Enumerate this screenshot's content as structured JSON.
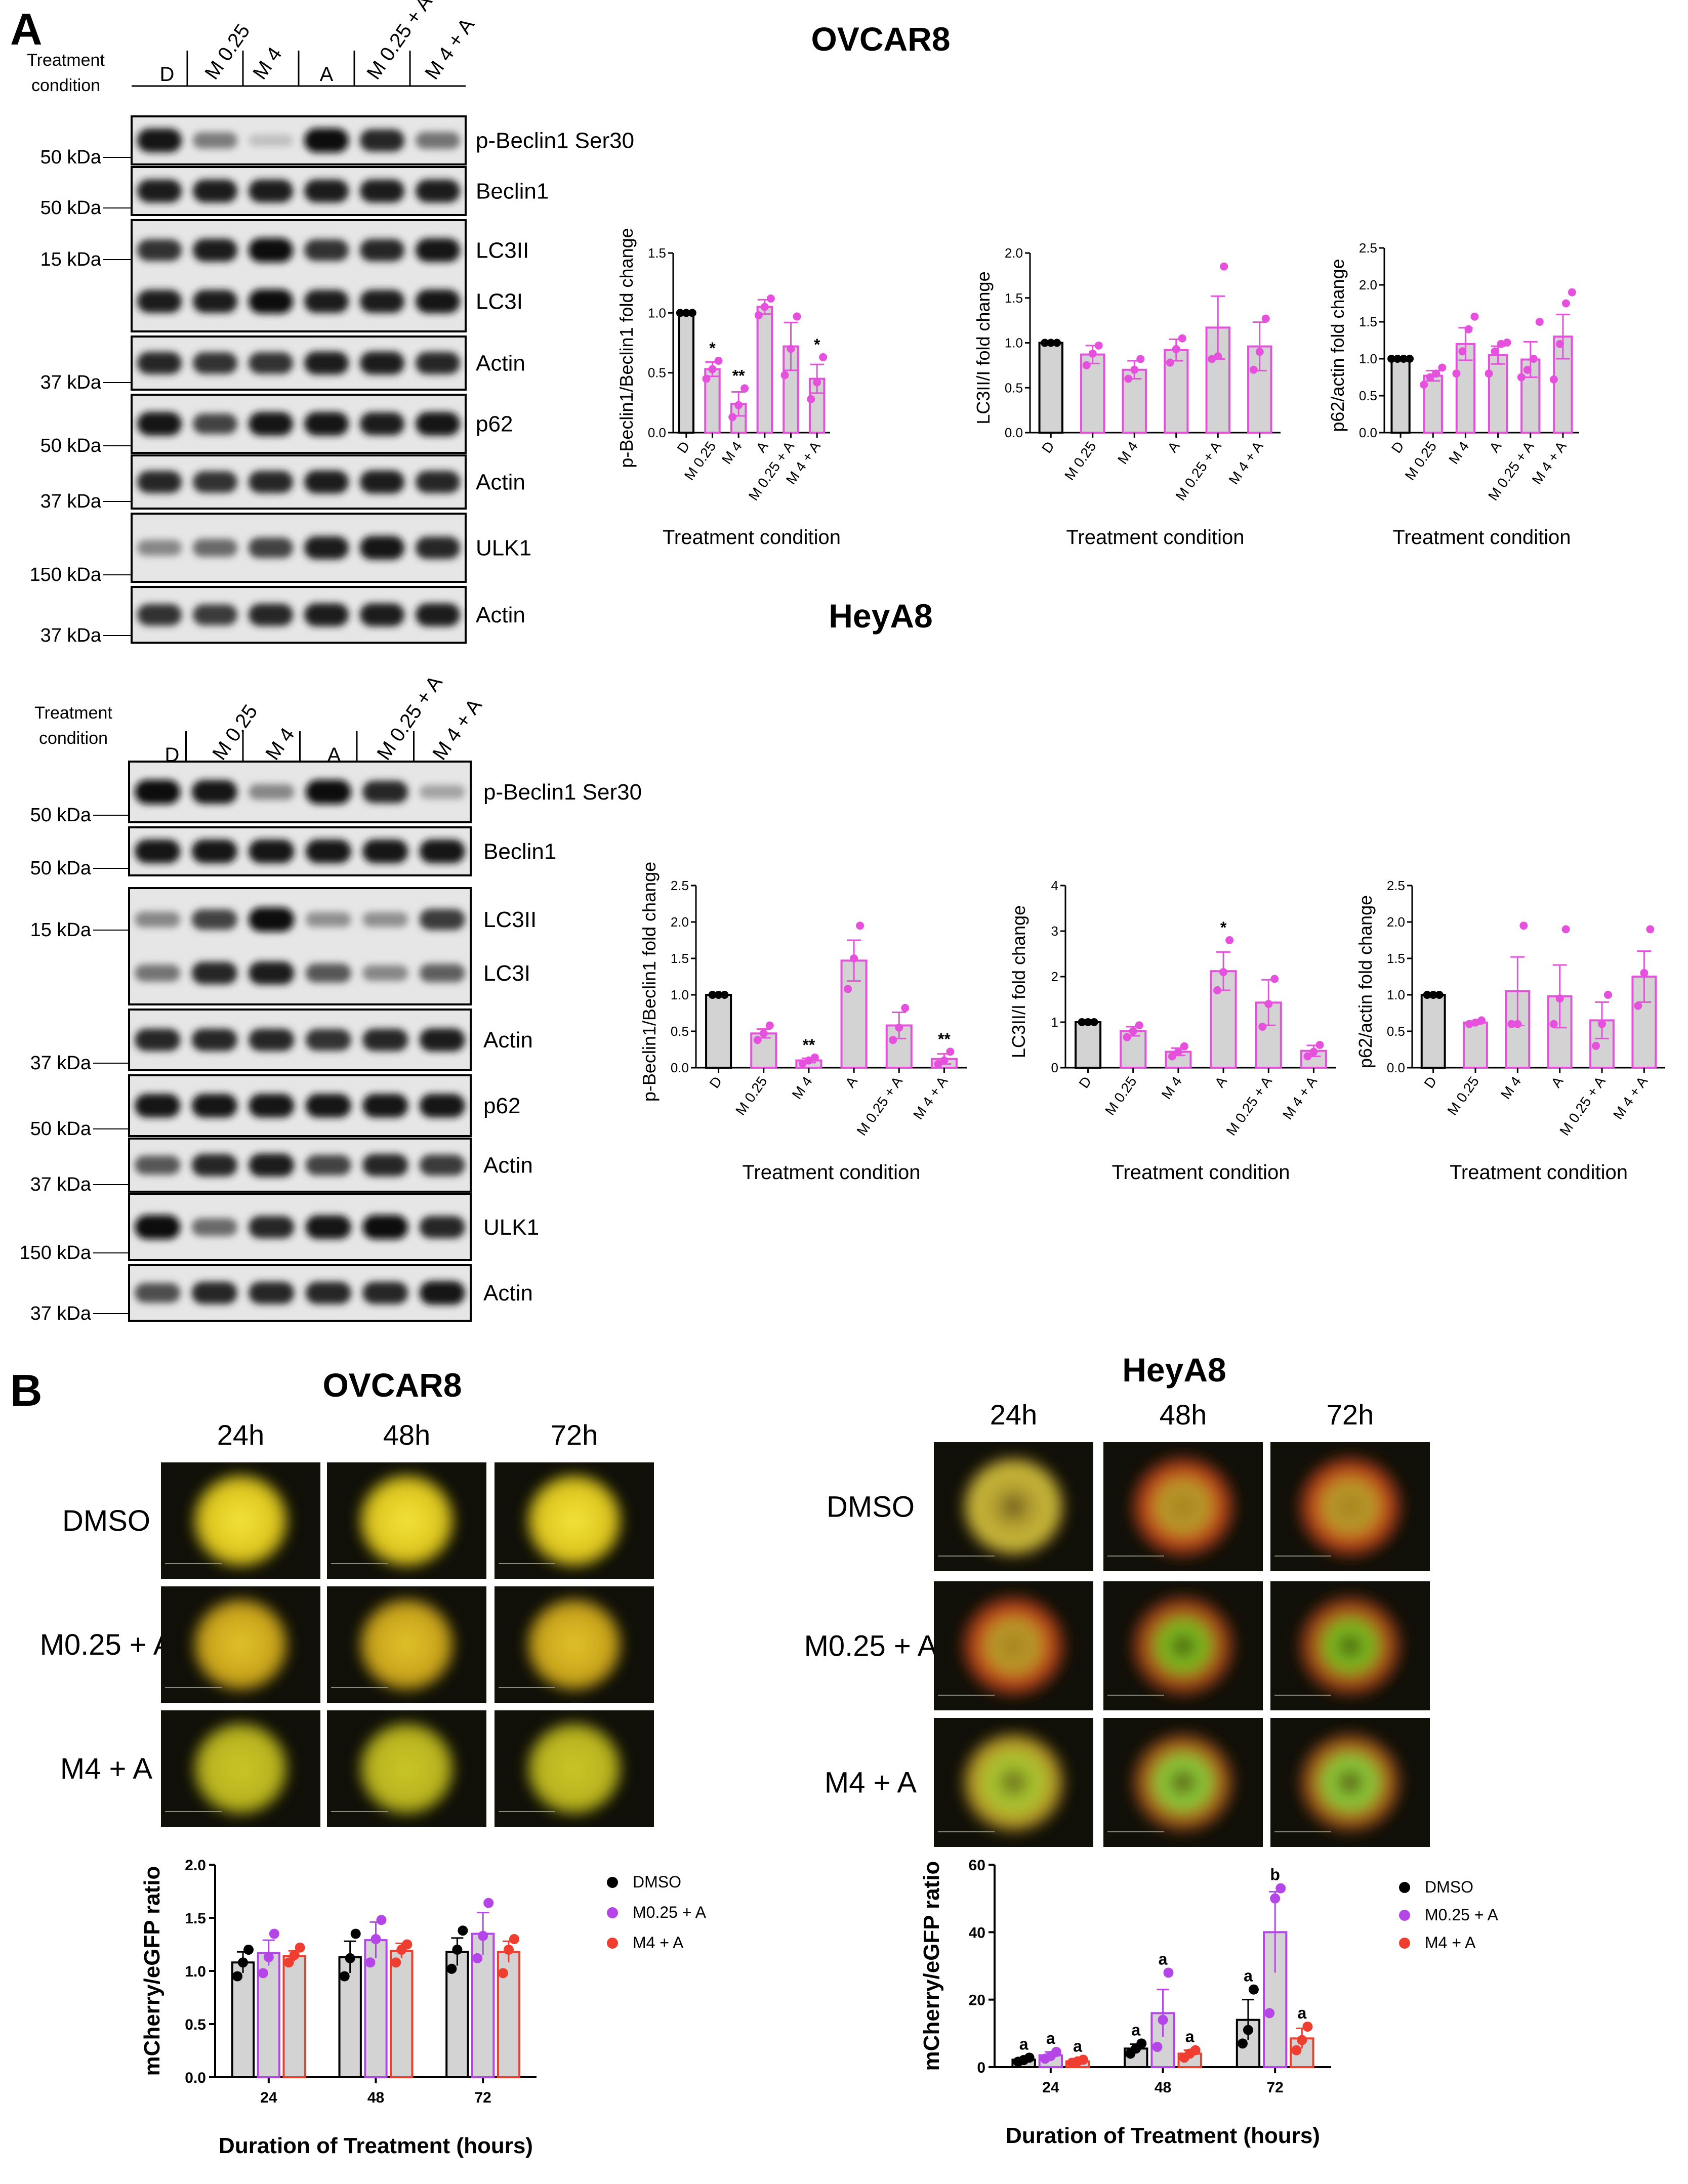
{
  "panels": {
    "a": "A",
    "b": "B"
  },
  "western": {
    "treatment_condition_label": "Treatment condition",
    "blocks": [
      {
        "title": "OVCAR8",
        "lanes": [
          "D",
          "M 0.25",
          "M 4",
          "A",
          "M 0.25 + A",
          "M 4 + A"
        ],
        "rows": [
          {
            "protein": "p-Beclin1 Ser30",
            "kda": "50 kDa",
            "int": [
              0.95,
              0.4,
              0.05,
              1,
              0.85,
              0.45
            ]
          },
          {
            "protein": "Beclin1",
            "kda": "50 kDa",
            "int": [
              0.9,
              0.9,
              0.9,
              0.9,
              0.9,
              0.9
            ]
          },
          {
            "protein": "LC3II",
            "protein2": "LC3I",
            "kda": "15 kDa",
            "int": [
              0.8,
              0.9,
              1,
              0.8,
              0.85,
              0.95
            ],
            "int2": [
              0.9,
              0.9,
              1,
              0.9,
              0.9,
              0.95
            ]
          },
          {
            "protein": "Actin",
            "kda": "37 kDa",
            "int": [
              0.85,
              0.8,
              0.8,
              0.9,
              0.9,
              0.85
            ]
          },
          {
            "protein": "p62",
            "kda": "50 kDa",
            "int": [
              0.95,
              0.7,
              0.95,
              0.95,
              0.9,
              0.95
            ]
          },
          {
            "protein": "Actin",
            "kda": "37 kDa",
            "int": [
              0.85,
              0.8,
              0.85,
              0.9,
              0.9,
              0.85
            ]
          },
          {
            "protein": "ULK1",
            "kda": "150 kDa",
            "int": [
              0.35,
              0.5,
              0.7,
              0.9,
              0.95,
              0.85
            ]
          },
          {
            "protein": "Actin",
            "kda": "37 kDa",
            "int": [
              0.8,
              0.75,
              0.85,
              0.9,
              0.9,
              0.9
            ]
          }
        ]
      },
      {
        "title": "HeyA8",
        "lanes": [
          "D",
          "M 0.25",
          "M 4",
          "A",
          "M 0.25 + A",
          "M 4 + A"
        ],
        "rows": [
          {
            "protein": "p-Beclin1 Ser30",
            "kda": "50 kDa",
            "int": [
              1,
              0.95,
              0.35,
              1,
              0.85,
              0.2
            ]
          },
          {
            "protein": "Beclin1",
            "kda": "50 kDa",
            "int": [
              0.95,
              0.95,
              0.95,
              0.95,
              0.95,
              0.95
            ]
          },
          {
            "protein": "LC3II",
            "protein2": "LC3I",
            "kda": "15 kDa",
            "int": [
              0.35,
              0.7,
              1,
              0.3,
              0.3,
              0.75
            ],
            "int2": [
              0.45,
              0.85,
              0.9,
              0.6,
              0.35,
              0.55
            ]
          },
          {
            "protein": "Actin",
            "kda": "37 kDa",
            "int": [
              0.85,
              0.85,
              0.85,
              0.8,
              0.85,
              0.9
            ]
          },
          {
            "protein": "p62",
            "kda": "50 kDa",
            "int": [
              0.95,
              0.95,
              0.95,
              0.95,
              0.95,
              0.95
            ]
          },
          {
            "protein": "Actin",
            "kda": "37 kDa",
            "int": [
              0.6,
              0.85,
              0.9,
              0.7,
              0.85,
              0.75
            ]
          },
          {
            "protein": "ULK1",
            "kda": "150 kDa",
            "int": [
              1,
              0.5,
              0.85,
              0.95,
              1,
              0.85
            ]
          },
          {
            "protein": "Actin",
            "kda": "37 kDa",
            "int": [
              0.65,
              0.85,
              0.85,
              0.85,
              0.85,
              0.95
            ]
          }
        ]
      }
    ]
  },
  "microscopy": {
    "groups": [
      {
        "title": "OVCAR8",
        "times": [
          "24h",
          "48h",
          "72h"
        ],
        "conditions": [
          "DMSO",
          "M0.25 + A",
          "M4 + A"
        ]
      },
      {
        "title": "HeyA8",
        "times": [
          "24h",
          "48h",
          "72h"
        ],
        "conditions": [
          "DMSO",
          "M0.25 + A",
          "M4 + A"
        ]
      }
    ]
  },
  "colors": {
    "pink": "#e550dc",
    "gray": "#d3d3d3",
    "black": "#000000",
    "purple": "#b445e6",
    "red": "#ef3e2f"
  },
  "chart_data": [
    {
      "type": "bar",
      "group": "OVCAR8",
      "title": "",
      "xlabel": "Treatment condition",
      "ylabel": "p-Beclin1/Beclin1 fold change",
      "categories": [
        "D",
        "M 0.25",
        "M 4",
        "A",
        "M 0.25 + A",
        "M 4 + A"
      ],
      "values": [
        1.0,
        0.53,
        0.24,
        1.05,
        0.72,
        0.45
      ],
      "errors": [
        0,
        0.06,
        0.1,
        0.06,
        0.2,
        0.12
      ],
      "points": [
        [
          1,
          1,
          1
        ],
        [
          0.45,
          0.53,
          0.6
        ],
        [
          0.13,
          0.23,
          0.37
        ],
        [
          0.98,
          1.05,
          1.12
        ],
        [
          0.48,
          0.7,
          0.97
        ],
        [
          0.28,
          0.42,
          0.63
        ]
      ],
      "sig": [
        "",
        "*",
        "**",
        "",
        "",
        "*"
      ],
      "ylim": [
        0,
        1.5
      ],
      "yticks": [
        "0.0",
        "0.5",
        "1.0",
        "1.5"
      ]
    },
    {
      "type": "bar",
      "group": "OVCAR8",
      "title": "",
      "xlabel": "Treatment condition",
      "ylabel": "LC3II/I fold change",
      "categories": [
        "D",
        "M 0.25",
        "M 4",
        "A",
        "M 0.25 + A",
        "M 4 + A"
      ],
      "values": [
        1.0,
        0.87,
        0.7,
        0.92,
        1.17,
        0.96
      ],
      "errors": [
        0,
        0.1,
        0.1,
        0.12,
        0.35,
        0.27
      ],
      "points": [
        [
          1,
          1,
          1
        ],
        [
          0.75,
          0.88,
          0.97
        ],
        [
          0.6,
          0.7,
          0.82
        ],
        [
          0.78,
          0.93,
          1.05
        ],
        [
          0.82,
          0.85,
          1.85
        ],
        [
          0.7,
          0.9,
          1.27
        ]
      ],
      "sig": [
        "",
        "",
        "",
        "",
        "",
        ""
      ],
      "ylim": [
        0,
        2.0
      ],
      "yticks": [
        "0.0",
        "0.5",
        "1.0",
        "1.5",
        "2.0"
      ]
    },
    {
      "type": "bar",
      "group": "OVCAR8",
      "title": "",
      "xlabel": "Treatment condition",
      "ylabel": "p62/actin fold change",
      "categories": [
        "D",
        "M 0.25",
        "M 4",
        "A",
        "M 0.25 + A",
        "M 4 + A"
      ],
      "values": [
        1.0,
        0.77,
        1.2,
        1.05,
        0.99,
        1.3
      ],
      "errors": [
        0,
        0.07,
        0.22,
        0.12,
        0.24,
        0.3
      ],
      "points": [
        [
          1,
          1,
          1,
          1
        ],
        [
          0.65,
          0.75,
          0.8,
          0.88
        ],
        [
          0.8,
          1.1,
          1.4,
          1.57
        ],
        [
          0.8,
          1.1,
          1.2,
          1.22
        ],
        [
          0.75,
          0.85,
          1.0,
          1.5
        ],
        [
          0.72,
          1.2,
          1.75,
          1.9
        ]
      ],
      "sig": [
        "",
        "",
        "",
        "",
        "",
        ""
      ],
      "ylim": [
        0,
        2.5
      ],
      "yticks": [
        "0.0",
        "0.5",
        "1.0",
        "1.5",
        "2.0",
        "2.5"
      ]
    },
    {
      "type": "bar",
      "group": "HeyA8",
      "title": "",
      "xlabel": "Treatment condition",
      "ylabel": "p-Beclin1/Beclin1 fold change",
      "categories": [
        "D",
        "M 0.25",
        "M 4",
        "A",
        "M 0.25 + A",
        "M 4 + A"
      ],
      "values": [
        1.0,
        0.47,
        0.1,
        1.47,
        0.58,
        0.12
      ],
      "errors": [
        0,
        0.06,
        0.03,
        0.28,
        0.18,
        0.07
      ],
      "points": [
        [
          1,
          1,
          1
        ],
        [
          0.38,
          0.47,
          0.58
        ],
        [
          0.06,
          0.1,
          0.14
        ],
        [
          1.08,
          1.5,
          1.95
        ],
        [
          0.38,
          0.55,
          0.82
        ],
        [
          0.05,
          0.1,
          0.22
        ]
      ],
      "sig": [
        "",
        "",
        "**",
        "",
        "",
        "**"
      ],
      "ylim": [
        0,
        2.5
      ],
      "yticks": [
        "0.0",
        "0.5",
        "1.0",
        "1.5",
        "2.0",
        "2.5"
      ]
    },
    {
      "type": "bar",
      "group": "HeyA8",
      "title": "",
      "xlabel": "Treatment condition",
      "ylabel": "LC3II/I fold change",
      "categories": [
        "D",
        "M 0.25",
        "M 4",
        "A",
        "M 0.25 + A",
        "M 4 + A"
      ],
      "values": [
        1.0,
        0.8,
        0.35,
        2.12,
        1.43,
        0.37
      ],
      "errors": [
        0,
        0.1,
        0.08,
        0.42,
        0.5,
        0.12
      ],
      "points": [
        [
          1,
          1,
          1
        ],
        [
          0.67,
          0.8,
          0.93
        ],
        [
          0.25,
          0.35,
          0.47
        ],
        [
          1.7,
          2.1,
          2.8
        ],
        [
          0.9,
          1.4,
          1.95
        ],
        [
          0.25,
          0.35,
          0.5
        ]
      ],
      "sig": [
        "",
        "",
        "",
        "*",
        "",
        ""
      ],
      "ylim": [
        0,
        4
      ],
      "yticks": [
        "0",
        "1",
        "2",
        "3",
        "4"
      ]
    },
    {
      "type": "bar",
      "group": "HeyA8",
      "title": "",
      "xlabel": "Treatment condition",
      "ylabel": "p62/actin fold change",
      "categories": [
        "D",
        "M 0.25",
        "M 4",
        "A",
        "M 0.25 + A",
        "M 4 + A"
      ],
      "values": [
        1.0,
        0.62,
        1.05,
        0.98,
        0.65,
        1.25
      ],
      "errors": [
        0,
        0.02,
        0.47,
        0.43,
        0.25,
        0.35
      ],
      "points": [
        [
          1,
          1,
          1
        ],
        [
          0.6,
          0.62,
          0.65
        ],
        [
          0.6,
          0.6,
          1.95
        ],
        [
          0.6,
          0.95,
          1.9
        ],
        [
          0.3,
          0.6,
          1.0
        ],
        [
          0.85,
          1.3,
          1.9
        ]
      ],
      "sig": [
        "",
        "",
        "",
        "",
        "",
        ""
      ],
      "ylim": [
        0,
        2.5
      ],
      "yticks": [
        "0.0",
        "0.5",
        "1.0",
        "1.5",
        "2.0",
        "2.5"
      ]
    },
    {
      "type": "bar",
      "group": "OVCAR8",
      "title": "",
      "xlabel": "Duration of Treatment (hours)",
      "ylabel": "mCherry/eGFP ratio",
      "categories": [
        "24",
        "48",
        "72"
      ],
      "series": [
        {
          "name": "DMSO",
          "values": [
            1.08,
            1.13,
            1.18
          ],
          "errors": [
            0.1,
            0.15,
            0.13
          ],
          "points": [
            [
              0.95,
              1.08,
              1.2
            ],
            [
              0.95,
              1.12,
              1.35
            ],
            [
              1.02,
              1.2,
              1.38
            ]
          ]
        },
        {
          "name": "M0.25 + A",
          "values": [
            1.17,
            1.29,
            1.35
          ],
          "errors": [
            0.12,
            0.17,
            0.2
          ],
          "points": [
            [
              0.98,
              1.13,
              1.35
            ],
            [
              1.08,
              1.3,
              1.48
            ],
            [
              1.12,
              1.33,
              1.64
            ]
          ]
        },
        {
          "name": "M4 + A",
          "values": [
            1.14,
            1.19,
            1.18
          ],
          "errors": [
            0.05,
            0.07,
            0.1
          ],
          "points": [
            [
              1.08,
              1.15,
              1.22
            ],
            [
              1.08,
              1.2,
              1.25
            ],
            [
              0.98,
              1.2,
              1.3
            ]
          ]
        }
      ],
      "ylim": [
        0,
        2.0
      ],
      "yticks": [
        "0.0",
        "0.5",
        "1.0",
        "1.5",
        "2.0"
      ],
      "legend": "right"
    },
    {
      "type": "bar",
      "group": "HeyA8",
      "title": "",
      "xlabel": "Duration of Treatment (hours)",
      "ylabel": "mCherry/eGFP ratio",
      "categories": [
        "24",
        "48",
        "72"
      ],
      "series": [
        {
          "name": "DMSO",
          "values": [
            2.2,
            5.5,
            14
          ],
          "errors": [
            0.6,
            1.3,
            6
          ],
          "points": [
            [
              1.6,
              2.1,
              2.8
            ],
            [
              4,
              5.5,
              7
            ],
            [
              7,
              11,
              23
            ]
          ],
          "letters": [
            "a",
            "a",
            "a"
          ]
        },
        {
          "name": "M0.25 + A",
          "values": [
            3.5,
            16,
            40
          ],
          "errors": [
            1,
            7,
            12
          ],
          "points": [
            [
              2.5,
              3.3,
              4.5
            ],
            [
              6,
              14,
              28
            ],
            [
              16,
              50,
              53
            ]
          ],
          "letters": [
            "a",
            "a",
            "b"
          ]
        },
        {
          "name": "M4 + A",
          "values": [
            1.7,
            4,
            8.5
          ],
          "errors": [
            0.4,
            1,
            3
          ],
          "points": [
            [
              1.3,
              1.7,
              2.2
            ],
            [
              2.8,
              4,
              5
            ],
            [
              5,
              8,
              12
            ]
          ],
          "letters": [
            "a",
            "a",
            "a"
          ]
        }
      ],
      "ylim": [
        0,
        60
      ],
      "yticks": [
        "0",
        "20",
        "40",
        "60"
      ],
      "legend": "right"
    }
  ]
}
